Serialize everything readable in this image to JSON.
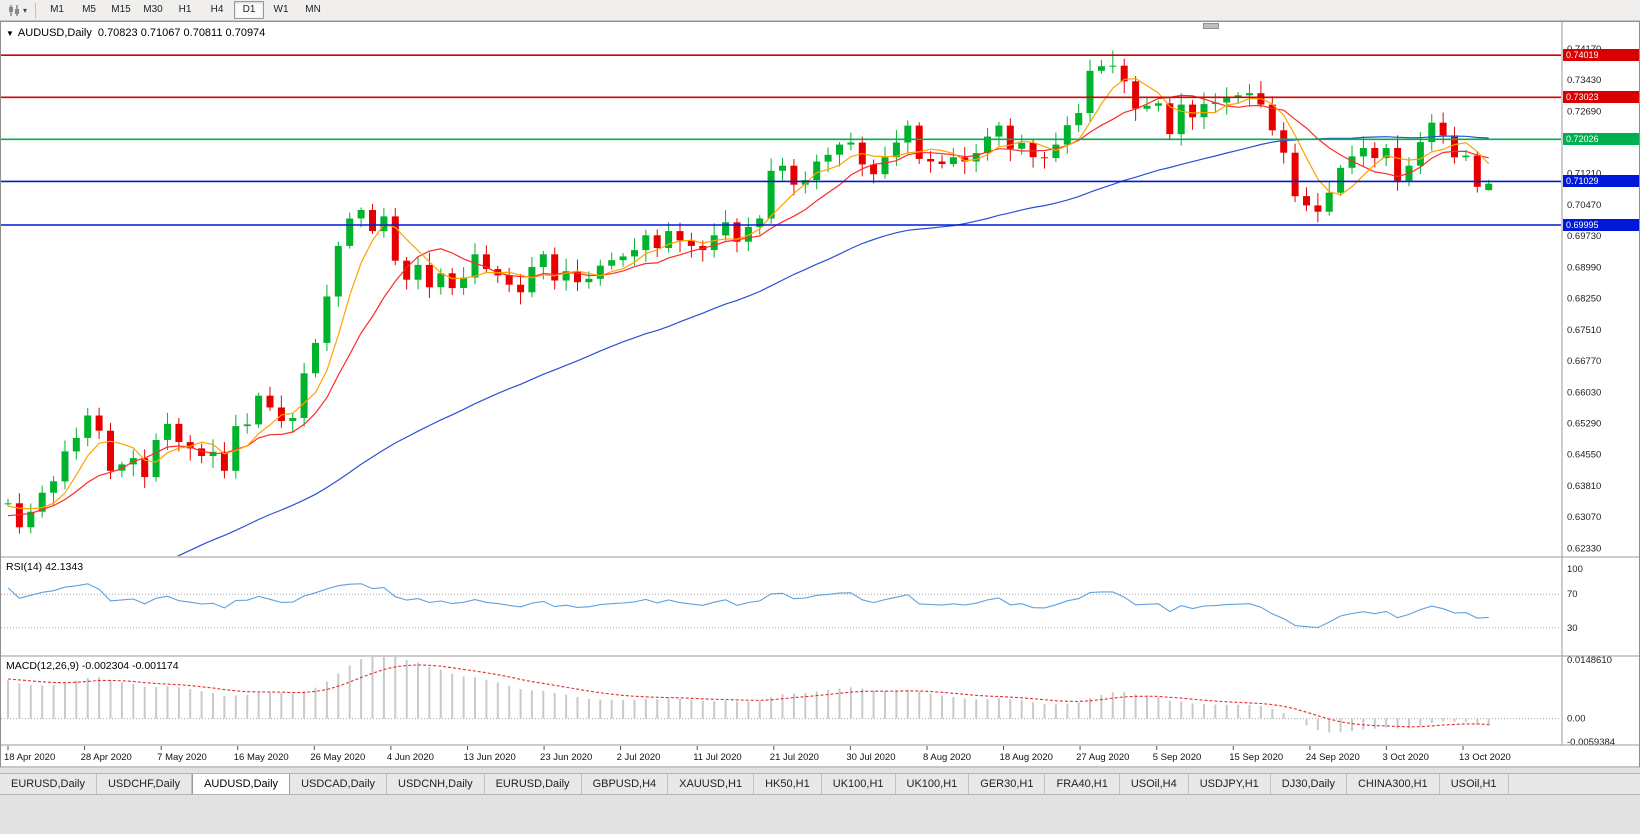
{
  "toolbar": {
    "timeframes": [
      "M1",
      "M5",
      "M15",
      "M30",
      "H1",
      "H4",
      "D1",
      "W1",
      "MN"
    ],
    "active_timeframe": "D1"
  },
  "chart": {
    "symbol_label": "AUDUSD,Daily",
    "ohlc": "0.70823 0.71067 0.70811 0.70974",
    "rsi_label": "RSI(14) 42.1343",
    "macd_label": "MACD(12,26,9) -0.002304 -0.001174"
  },
  "price_axis": {
    "labels": [
      {
        "t": "0.74170",
        "p": 0.7417
      },
      {
        "t": "0.73430",
        "p": 0.7343
      },
      {
        "t": "0.72690",
        "p": 0.7269
      },
      {
        "t": "0.71210",
        "p": 0.7121
      },
      {
        "t": "0.70470",
        "p": 0.7047
      },
      {
        "t": "0.69730",
        "p": 0.6973
      },
      {
        "t": "0.68990",
        "p": 0.6899
      },
      {
        "t": "0.68250",
        "p": 0.6825
      },
      {
        "t": "0.67510",
        "p": 0.6751
      },
      {
        "t": "0.66770",
        "p": 0.6677
      },
      {
        "t": "0.66030",
        "p": 0.6603
      },
      {
        "t": "0.65290",
        "p": 0.6529
      },
      {
        "t": "0.64550",
        "p": 0.6455
      },
      {
        "t": "0.63810",
        "p": 0.6381
      },
      {
        "t": "0.63070",
        "p": 0.6307
      },
      {
        "t": "0.62330",
        "p": 0.6233
      }
    ]
  },
  "rsi_axis": [
    {
      "t": "100",
      "v": 100
    },
    {
      "t": "70",
      "v": 70
    },
    {
      "t": "30",
      "v": 30
    }
  ],
  "macd_axis": [
    {
      "t": "0.0148610",
      "v": 0.014861
    },
    {
      "t": "0.00",
      "v": 0
    },
    {
      "t": "-0.0059384",
      "v": -0.0059384
    }
  ],
  "date_axis": [
    "18 Apr 2020",
    "28 Apr 2020",
    "7 May 2020",
    "16 May 2020",
    "26 May 2020",
    "4 Jun 2020",
    "13 Jun 2020",
    "23 Jun 2020",
    "2 Jul 2020",
    "11 Jul 2020",
    "21 Jul 2020",
    "30 Jul 2020",
    "8 Aug 2020",
    "18 Aug 2020",
    "27 Aug 2020",
    "5 Sep 2020",
    "15 Sep 2020",
    "24 Sep 2020",
    "3 Oct 2020",
    "13 Oct 2020"
  ],
  "tabs": {
    "active_index": 2,
    "items": [
      "EURUSD,Daily",
      "USDCHF,Daily",
      "AUDUSD,Daily",
      "USDCAD,Daily",
      "USDCNH,Daily",
      "EURUSD,Daily",
      "GBPUSD,H4",
      "XAUUSD,H1",
      "HK50,H1",
      "UK100,H1",
      "UK100,H1",
      "GER30,H1",
      "FRA40,H1",
      "USOil,H4",
      "USDJPY,H1",
      "DJ30,Daily",
      "CHINA300,H1",
      "USOil,H1"
    ]
  },
  "chart_data": {
    "type": "candlestick",
    "symbol": "AUDUSD",
    "timeframe": "Daily",
    "ohlc_current": {
      "open": 0.70823,
      "high": 0.71067,
      "low": 0.70811,
      "close": 0.70974
    },
    "visible_range": {
      "price_min": 0.6215,
      "price_max": 0.7438
    },
    "levels": [
      {
        "t": "0.74019",
        "p": 0.74019,
        "color": "#d80000"
      },
      {
        "t": "0.73023",
        "p": 0.73023,
        "color": "#d80000"
      },
      {
        "t": "0.72026",
        "p": 0.72026,
        "color": "#00b050"
      },
      {
        "t": "0.71029",
        "p": 0.71029,
        "color": "#0018d8"
      },
      {
        "t": "0.69995",
        "p": 0.69995,
        "color": "#0018d8"
      }
    ],
    "colors": {
      "up": "#00b32c",
      "down": "#e80000",
      "ma_fast": "#ffa200",
      "ma_mid": "#ff2a2a",
      "ma_slow": "#2b50d6",
      "rsi": "#5fa0dc",
      "macd_hist": "#c9c9c9",
      "macd_signal": "#e03030"
    },
    "indicators": {
      "ma_fast": {
        "period": 5,
        "color": "#ffa200"
      },
      "ma_mid": {
        "period": 10,
        "color": "#ff2a2a"
      },
      "ma_slow": {
        "period": 50,
        "color": "#2b50d6"
      },
      "rsi": {
        "period": 14,
        "current": 42.1343
      },
      "macd": {
        "fast": 12,
        "slow": 26,
        "signal": 9,
        "current": -0.002304,
        "signal_current": -0.001174
      }
    },
    "pre_closes": [
      0.57,
      0.5725,
      0.575,
      0.5735,
      0.578,
      0.581,
      0.584,
      0.582,
      0.586,
      0.589,
      0.592,
      0.59,
      0.594,
      0.597,
      0.6,
      0.598,
      0.602,
      0.605,
      0.603,
      0.607,
      0.61,
      0.608,
      0.612,
      0.615,
      0.613,
      0.617,
      0.62,
      0.618,
      0.622,
      0.6245,
      0.623,
      0.626,
      0.629,
      0.627,
      0.63,
      0.632,
      0.6305,
      0.633,
      0.635,
      0.634
    ],
    "closes": [
      0.634,
      0.6283,
      0.632,
      0.6365,
      0.6392,
      0.6463,
      0.6495,
      0.6548,
      0.6512,
      0.6417,
      0.6432,
      0.6447,
      0.6402,
      0.649,
      0.6528,
      0.6485,
      0.647,
      0.6452,
      0.6462,
      0.6417,
      0.6523,
      0.6527,
      0.6595,
      0.6567,
      0.6535,
      0.6542,
      0.6648,
      0.672,
      0.683,
      0.695,
      0.7015,
      0.7035,
      0.6985,
      0.702,
      0.6915,
      0.687,
      0.6905,
      0.6852,
      0.6885,
      0.685,
      0.6875,
      0.693,
      0.6895,
      0.688,
      0.6858,
      0.684,
      0.69,
      0.693,
      0.6868,
      0.689,
      0.6864,
      0.6872,
      0.6903,
      0.6916,
      0.6925,
      0.694,
      0.6975,
      0.6945,
      0.6985,
      0.6963,
      0.695,
      0.694,
      0.6975,
      0.7006,
      0.696,
      0.6995,
      0.7015,
      0.7128,
      0.714,
      0.7095,
      0.7106,
      0.715,
      0.7166,
      0.719,
      0.7195,
      0.7143,
      0.712,
      0.716,
      0.7195,
      0.7235,
      0.7156,
      0.715,
      0.7144,
      0.716,
      0.715,
      0.717,
      0.7209,
      0.7235,
      0.718,
      0.7194,
      0.716,
      0.7158,
      0.719,
      0.7236,
      0.7265,
      0.7365,
      0.7376,
      0.7377,
      0.734,
      0.7275,
      0.7282,
      0.7288,
      0.7215,
      0.7285,
      0.7255,
      0.7286,
      0.729,
      0.7302,
      0.7307,
      0.7312,
      0.7285,
      0.7224,
      0.7171,
      0.7068,
      0.7046,
      0.7031,
      0.7076,
      0.7135,
      0.7162,
      0.7182,
      0.7158,
      0.7182,
      0.7105,
      0.714,
      0.7196,
      0.7242,
      0.7212,
      0.716,
      0.7164,
      0.709,
      0.70974
    ],
    "overrides": {
      "1": {
        "l": 0.6268
      },
      "31": {
        "h": 0.7041
      },
      "33": {
        "h": 0.704
      },
      "97": {
        "h": 0.7413
      },
      "115": {
        "l": 0.7006
      },
      "130": {
        "o": 0.70823,
        "h": 0.71067,
        "l": 0.70811,
        "c": 0.70974
      }
    }
  }
}
